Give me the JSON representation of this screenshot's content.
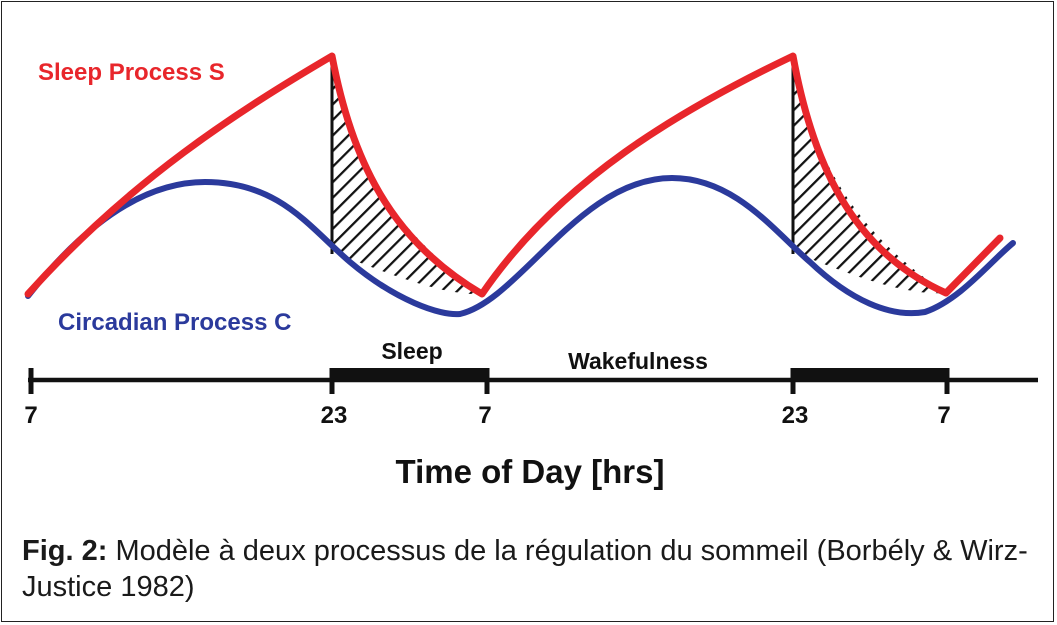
{
  "labels": {
    "sleep_process": "Sleep Process S",
    "circadian_process": "Circadian Process C",
    "sleep_period": "Sleep",
    "wake_period": "Wakefulness",
    "axis_title": "Time of Day [hrs]"
  },
  "ticks": [
    "7",
    "23",
    "7",
    "23",
    "7"
  ],
  "caption": {
    "prefix": "Fig. 2:",
    "text": " Modèle à deux processus de la régulation du sommeil (Borbély & Wirz-Justice 1982)"
  },
  "colors": {
    "sleep_process": "#e8262b",
    "circadian_process": "#2b3a9c",
    "axis": "#111111",
    "hatch": "#111111"
  }
}
